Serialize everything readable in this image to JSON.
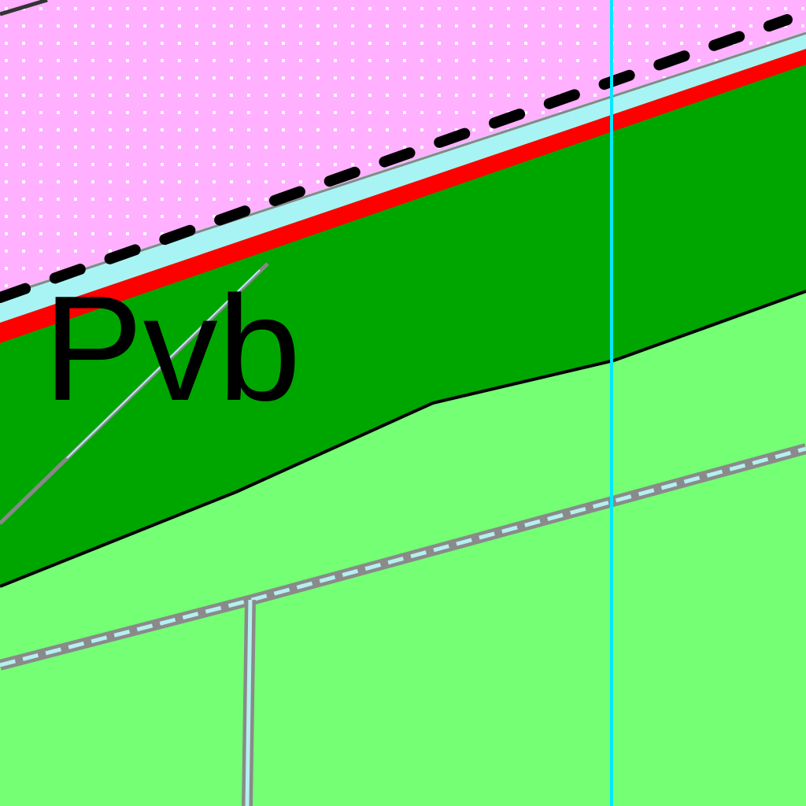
{
  "map": {
    "units": [
      {
        "id": "upper-unit",
        "color": "#ffb0ff",
        "pattern": "white-dot-stipple"
      },
      {
        "id": "pvb-unit",
        "label": "Pvb",
        "color": "#00a600"
      },
      {
        "id": "lower-unit",
        "color": "#74ff74"
      }
    ],
    "contacts": {
      "upper-contact": {
        "style": "dashed",
        "color": "#000000"
      },
      "red-band": {
        "color": "#ff0000"
      },
      "cyan-band": {
        "color": "#a8f4f4"
      },
      "lower-contact": {
        "style": "solid",
        "color": "#000000"
      }
    },
    "grid_line": {
      "color": "#00e8ff"
    },
    "roads": {
      "color": "#8a8a8a",
      "inner_color": "#b4f0f0"
    },
    "unit_label": "Pvb"
  }
}
